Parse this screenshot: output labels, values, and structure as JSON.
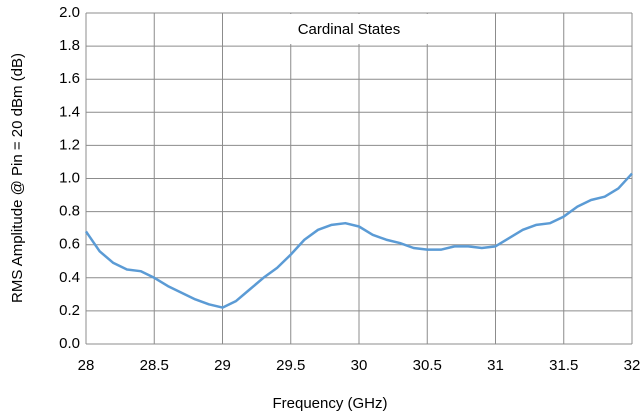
{
  "chart_data": {
    "type": "line",
    "annotation": "Cardinal States",
    "x_label": "Frequency (GHz)",
    "y_label": "RMS Amplitude @ Pin = 20 dBm (dB)",
    "x": [
      28.0,
      28.1,
      28.2,
      28.3,
      28.4,
      28.5,
      28.6,
      28.7,
      28.8,
      28.9,
      29.0,
      29.1,
      29.2,
      29.3,
      29.4,
      29.5,
      29.6,
      29.7,
      29.8,
      29.9,
      30.0,
      30.1,
      30.2,
      30.3,
      30.4,
      30.5,
      30.6,
      30.7,
      30.8,
      30.9,
      31.0,
      31.1,
      31.2,
      31.3,
      31.4,
      31.5,
      31.6,
      31.7,
      31.8,
      31.9,
      32.0
    ],
    "series": [
      {
        "color": "#5b9bd5",
        "values": [
          0.68,
          0.56,
          0.49,
          0.45,
          0.44,
          0.4,
          0.35,
          0.31,
          0.27,
          0.24,
          0.22,
          0.26,
          0.33,
          0.4,
          0.46,
          0.54,
          0.63,
          0.69,
          0.72,
          0.73,
          0.71,
          0.66,
          0.63,
          0.61,
          0.58,
          0.57,
          0.57,
          0.59,
          0.59,
          0.58,
          0.59,
          0.64,
          0.69,
          0.72,
          0.73,
          0.77,
          0.83,
          0.87,
          0.89,
          0.94,
          1.03
        ]
      }
    ],
    "xlim": [
      28,
      32
    ],
    "xticks": [
      28,
      28.5,
      29,
      29.5,
      30,
      30.5,
      31,
      31.5,
      32
    ],
    "ylim": [
      0,
      2
    ],
    "yticks": [
      {
        "value": 0,
        "label": "0.0"
      },
      0.2,
      0.4,
      0.6,
      0.8,
      {
        "value": 1,
        "label": "1.0"
      },
      1.2,
      1.4,
      1.6,
      1.8,
      {
        "value": 2,
        "label": "2.0"
      }
    ],
    "grid": true
  }
}
